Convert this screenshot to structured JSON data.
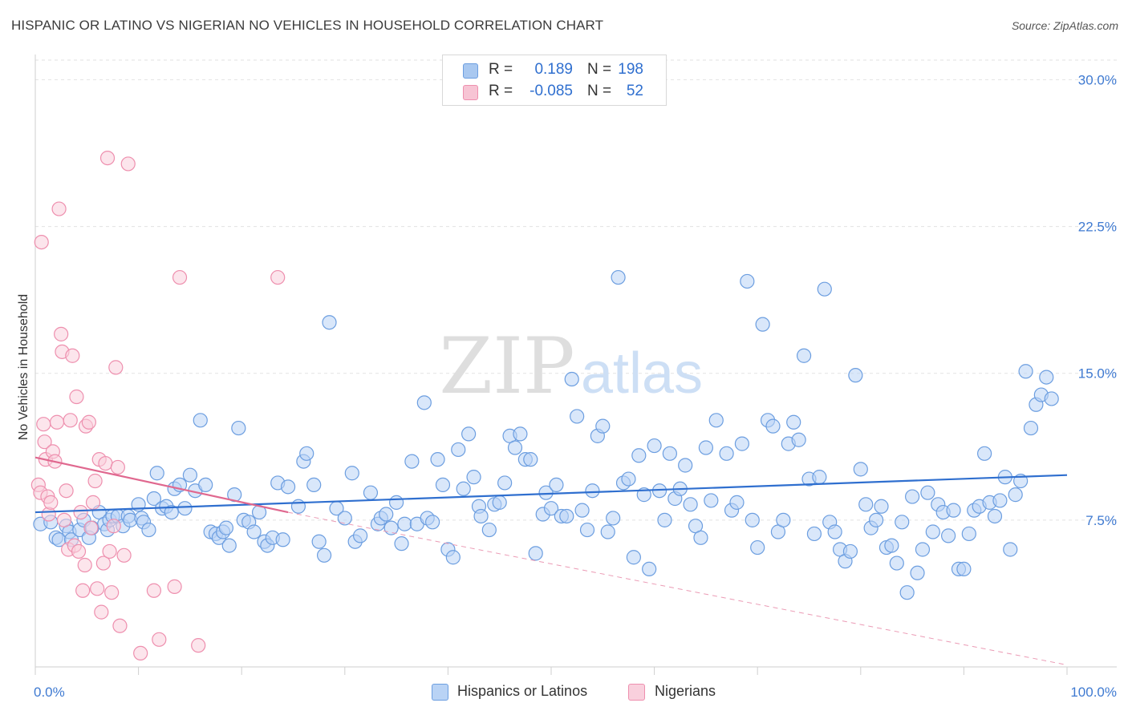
{
  "title": "HISPANIC OR LATINO VS NIGERIAN NO VEHICLES IN HOUSEHOLD CORRELATION CHART",
  "source": "Source: ZipAtlas.com",
  "watermark": {
    "zip": "ZIP",
    "atlas": "atlas"
  },
  "legend": {
    "rows": [
      {
        "r_label": "R =",
        "r_value": "0.189",
        "n_label": "N =",
        "n_value": "198",
        "color": "#a9c8f0",
        "border": "#6c9ee0"
      },
      {
        "r_label": "R =",
        "r_value": "-0.085",
        "n_label": "N =",
        "n_value": "52",
        "color": "#f7c4d4",
        "border": "#ee8fae"
      }
    ]
  },
  "bottom_legend": [
    {
      "label": "Hispanics or Latinos",
      "color": "#b9d3f5",
      "border": "#6c9ee0"
    },
    {
      "label": "Nigerians",
      "color": "#f9d0dd",
      "border": "#ee8fae"
    }
  ],
  "chart_data": {
    "type": "scatter",
    "title": "HISPANIC OR LATINO VS NIGERIAN NO VEHICLES IN HOUSEHOLD CORRELATION CHART",
    "xlabel": "",
    "ylabel": "No Vehicles in Household",
    "xlim": [
      0,
      100
    ],
    "ylim": [
      0,
      31
    ],
    "x_tick_labels": [
      "0.0%",
      "100.0%"
    ],
    "y_ticks": [
      7.5,
      15.0,
      22.5,
      30.0
    ],
    "y_tick_labels": [
      "7.5%",
      "15.0%",
      "22.5%",
      "30.0%"
    ],
    "grid": true,
    "series": [
      {
        "name": "Hispanics or Latinos",
        "color": "#6c9ee0",
        "fill": "#b9d3f5",
        "trend": {
          "x": [
            0,
            100
          ],
          "y": [
            7.9,
            9.8
          ],
          "color": "#2f6fcf"
        },
        "points": [
          [
            0.5,
            7.3
          ],
          [
            1.5,
            7.4
          ],
          [
            2,
            6.6
          ],
          [
            2.3,
            6.5
          ],
          [
            3,
            7.2
          ],
          [
            3.3,
            6.9
          ],
          [
            3.5,
            6.5
          ],
          [
            4.3,
            7.0
          ],
          [
            4.7,
            7.5
          ],
          [
            5.2,
            6.6
          ],
          [
            5.5,
            7.1
          ],
          [
            6.2,
            7.9
          ],
          [
            6.7,
            7.3
          ],
          [
            7,
            7.0
          ],
          [
            7.2,
            7.5
          ],
          [
            7.5,
            7.7
          ],
          [
            8,
            7.7
          ],
          [
            8.5,
            7.2
          ],
          [
            9,
            7.7
          ],
          [
            9.2,
            7.5
          ],
          [
            10,
            8.3
          ],
          [
            10.3,
            7.6
          ],
          [
            10.5,
            7.4
          ],
          [
            11,
            7.0
          ],
          [
            11.5,
            8.6
          ],
          [
            11.8,
            9.9
          ],
          [
            12.3,
            8.1
          ],
          [
            12.7,
            8.2
          ],
          [
            13.2,
            7.9
          ],
          [
            13.5,
            9.1
          ],
          [
            14,
            9.3
          ],
          [
            14.5,
            8.1
          ],
          [
            15,
            9.8
          ],
          [
            15.5,
            9.0
          ],
          [
            16,
            12.6
          ],
          [
            16.5,
            9.3
          ],
          [
            17,
            6.9
          ],
          [
            17.5,
            6.8
          ],
          [
            17.8,
            6.6
          ],
          [
            18.2,
            6.9
          ],
          [
            18.5,
            7.1
          ],
          [
            18.8,
            6.2
          ],
          [
            19.3,
            8.8
          ],
          [
            19.7,
            12.2
          ],
          [
            20.2,
            7.5
          ],
          [
            20.7,
            7.4
          ],
          [
            21.2,
            6.9
          ],
          [
            21.7,
            7.9
          ],
          [
            22.2,
            6.4
          ],
          [
            22.5,
            6.2
          ],
          [
            23,
            6.6
          ],
          [
            23.5,
            9.4
          ],
          [
            24,
            6.5
          ],
          [
            24.5,
            9.2
          ],
          [
            25.5,
            8.2
          ],
          [
            26,
            10.5
          ],
          [
            26.3,
            10.9
          ],
          [
            27,
            9.3
          ],
          [
            27.5,
            6.4
          ],
          [
            28,
            5.7
          ],
          [
            28.5,
            17.6
          ],
          [
            29.2,
            8.1
          ],
          [
            30,
            7.6
          ],
          [
            30.7,
            9.9
          ],
          [
            31,
            6.4
          ],
          [
            31.5,
            6.7
          ],
          [
            32.5,
            8.9
          ],
          [
            33.2,
            7.3
          ],
          [
            33.5,
            7.6
          ],
          [
            34,
            7.8
          ],
          [
            34.5,
            7.1
          ],
          [
            35,
            8.4
          ],
          [
            35.5,
            6.3
          ],
          [
            35.8,
            7.3
          ],
          [
            36.5,
            10.5
          ],
          [
            37,
            7.3
          ],
          [
            37.7,
            13.5
          ],
          [
            38,
            7.6
          ],
          [
            38.5,
            7.4
          ],
          [
            39,
            10.6
          ],
          [
            39.5,
            9.3
          ],
          [
            40,
            6.0
          ],
          [
            40.5,
            5.6
          ],
          [
            41,
            11.1
          ],
          [
            41.5,
            9.1
          ],
          [
            42,
            11.9
          ],
          [
            42.5,
            9.7
          ],
          [
            43,
            8.2
          ],
          [
            43.2,
            7.7
          ],
          [
            44,
            7.0
          ],
          [
            44.5,
            8.3
          ],
          [
            45,
            8.4
          ],
          [
            45.5,
            9.4
          ],
          [
            46,
            11.8
          ],
          [
            46.5,
            11.2
          ],
          [
            47,
            11.9
          ],
          [
            47.5,
            10.6
          ],
          [
            48,
            10.6
          ],
          [
            48.5,
            5.8
          ],
          [
            49.2,
            7.8
          ],
          [
            49.5,
            8.9
          ],
          [
            50,
            8.1
          ],
          [
            50.5,
            9.3
          ],
          [
            51,
            7.7
          ],
          [
            51.5,
            7.7
          ],
          [
            52,
            14.7
          ],
          [
            52.5,
            12.8
          ],
          [
            53,
            8.0
          ],
          [
            53.5,
            7.0
          ],
          [
            54,
            9.0
          ],
          [
            54.5,
            11.8
          ],
          [
            55,
            12.3
          ],
          [
            55.5,
            6.9
          ],
          [
            56,
            7.6
          ],
          [
            56.5,
            19.9
          ],
          [
            57,
            9.4
          ],
          [
            57.5,
            9.6
          ],
          [
            58,
            5.6
          ],
          [
            58.5,
            10.8
          ],
          [
            59,
            8.8
          ],
          [
            59.5,
            5.0
          ],
          [
            60,
            11.3
          ],
          [
            60.5,
            9.0
          ],
          [
            61,
            7.5
          ],
          [
            61.5,
            10.9
          ],
          [
            62,
            8.6
          ],
          [
            62.5,
            9.1
          ],
          [
            63,
            10.3
          ],
          [
            63.5,
            8.3
          ],
          [
            64,
            7.2
          ],
          [
            64.5,
            6.6
          ],
          [
            65,
            11.2
          ],
          [
            65.5,
            8.5
          ],
          [
            66,
            12.6
          ],
          [
            67,
            10.9
          ],
          [
            67.5,
            8.0
          ],
          [
            68,
            8.4
          ],
          [
            68.5,
            11.4
          ],
          [
            69,
            19.7
          ],
          [
            69.5,
            7.5
          ],
          [
            70,
            6.1
          ],
          [
            70.5,
            17.5
          ],
          [
            71,
            12.6
          ],
          [
            71.5,
            12.3
          ],
          [
            72,
            6.9
          ],
          [
            72.5,
            7.5
          ],
          [
            73,
            11.4
          ],
          [
            73.5,
            12.5
          ],
          [
            74,
            11.6
          ],
          [
            74.5,
            15.9
          ],
          [
            75,
            9.6
          ],
          [
            75.5,
            6.8
          ],
          [
            76,
            9.7
          ],
          [
            76.5,
            19.3
          ],
          [
            77,
            7.4
          ],
          [
            77.5,
            6.9
          ],
          [
            78,
            6.0
          ],
          [
            78.5,
            5.4
          ],
          [
            79,
            5.9
          ],
          [
            79.5,
            14.9
          ],
          [
            80,
            10.1
          ],
          [
            80.5,
            8.3
          ],
          [
            81,
            7.1
          ],
          [
            81.5,
            7.5
          ],
          [
            82,
            8.2
          ],
          [
            82.5,
            6.1
          ],
          [
            83,
            6.2
          ],
          [
            83.5,
            5.3
          ],
          [
            84,
            7.4
          ],
          [
            84.5,
            3.8
          ],
          [
            85,
            8.7
          ],
          [
            85.5,
            4.8
          ],
          [
            86,
            6.0
          ],
          [
            86.5,
            8.9
          ],
          [
            87,
            6.9
          ],
          [
            87.5,
            8.3
          ],
          [
            88,
            7.9
          ],
          [
            88.5,
            6.7
          ],
          [
            89,
            8.0
          ],
          [
            89.5,
            5.0
          ],
          [
            90,
            5.0
          ],
          [
            90.5,
            6.8
          ],
          [
            91,
            8.0
          ],
          [
            91.5,
            8.2
          ],
          [
            92,
            10.9
          ],
          [
            92.5,
            8.4
          ],
          [
            93,
            7.7
          ],
          [
            93.5,
            8.5
          ],
          [
            94,
            9.7
          ],
          [
            94.5,
            6.0
          ],
          [
            95,
            8.8
          ],
          [
            95.5,
            9.5
          ],
          [
            96,
            15.1
          ],
          [
            96.5,
            12.2
          ],
          [
            97,
            13.4
          ],
          [
            97.5,
            13.9
          ],
          [
            98,
            14.8
          ],
          [
            98.5,
            13.7
          ]
        ]
      },
      {
        "name": "Nigerians",
        "color": "#ee8fae",
        "fill": "#f9d0dd",
        "trend": {
          "x": [
            0,
            24.5
          ],
          "y": [
            10.7,
            7.9
          ],
          "color": "#e0688f"
        },
        "trend_dashed": {
          "x": [
            24.5,
            100
          ],
          "y": [
            7.9,
            0.1
          ]
        },
        "points": [
          [
            0.3,
            9.3
          ],
          [
            0.5,
            8.9
          ],
          [
            0.6,
            21.7
          ],
          [
            0.8,
            12.4
          ],
          [
            0.9,
            11.5
          ],
          [
            1.0,
            10.6
          ],
          [
            1.2,
            8.7
          ],
          [
            1.3,
            7.8
          ],
          [
            1.5,
            8.4
          ],
          [
            1.7,
            11.0
          ],
          [
            1.9,
            10.5
          ],
          [
            2.1,
            12.5
          ],
          [
            2.3,
            23.4
          ],
          [
            2.5,
            17.0
          ],
          [
            2.6,
            16.1
          ],
          [
            2.8,
            7.5
          ],
          [
            3.0,
            9.0
          ],
          [
            3.2,
            6.0
          ],
          [
            3.4,
            12.6
          ],
          [
            3.6,
            15.9
          ],
          [
            3.8,
            6.2
          ],
          [
            4.0,
            13.8
          ],
          [
            4.2,
            5.9
          ],
          [
            4.4,
            7.9
          ],
          [
            4.6,
            3.9
          ],
          [
            4.8,
            5.2
          ],
          [
            4.9,
            12.3
          ],
          [
            5.2,
            12.5
          ],
          [
            5.4,
            7.1
          ],
          [
            5.6,
            8.4
          ],
          [
            5.8,
            9.5
          ],
          [
            6.0,
            4.0
          ],
          [
            6.2,
            10.6
          ],
          [
            6.4,
            2.8
          ],
          [
            6.6,
            5.3
          ],
          [
            6.8,
            10.4
          ],
          [
            7.0,
            26.0
          ],
          [
            7.2,
            5.9
          ],
          [
            7.4,
            3.8
          ],
          [
            7.6,
            7.2
          ],
          [
            7.8,
            15.3
          ],
          [
            8.0,
            10.2
          ],
          [
            8.2,
            2.1
          ],
          [
            8.6,
            5.7
          ],
          [
            9.0,
            25.7
          ],
          [
            10.2,
            0.7
          ],
          [
            11.5,
            3.9
          ],
          [
            12.0,
            1.4
          ],
          [
            13.5,
            4.1
          ],
          [
            14.0,
            19.9
          ],
          [
            15.8,
            1.1
          ],
          [
            23.5,
            19.9
          ]
        ]
      }
    ]
  }
}
